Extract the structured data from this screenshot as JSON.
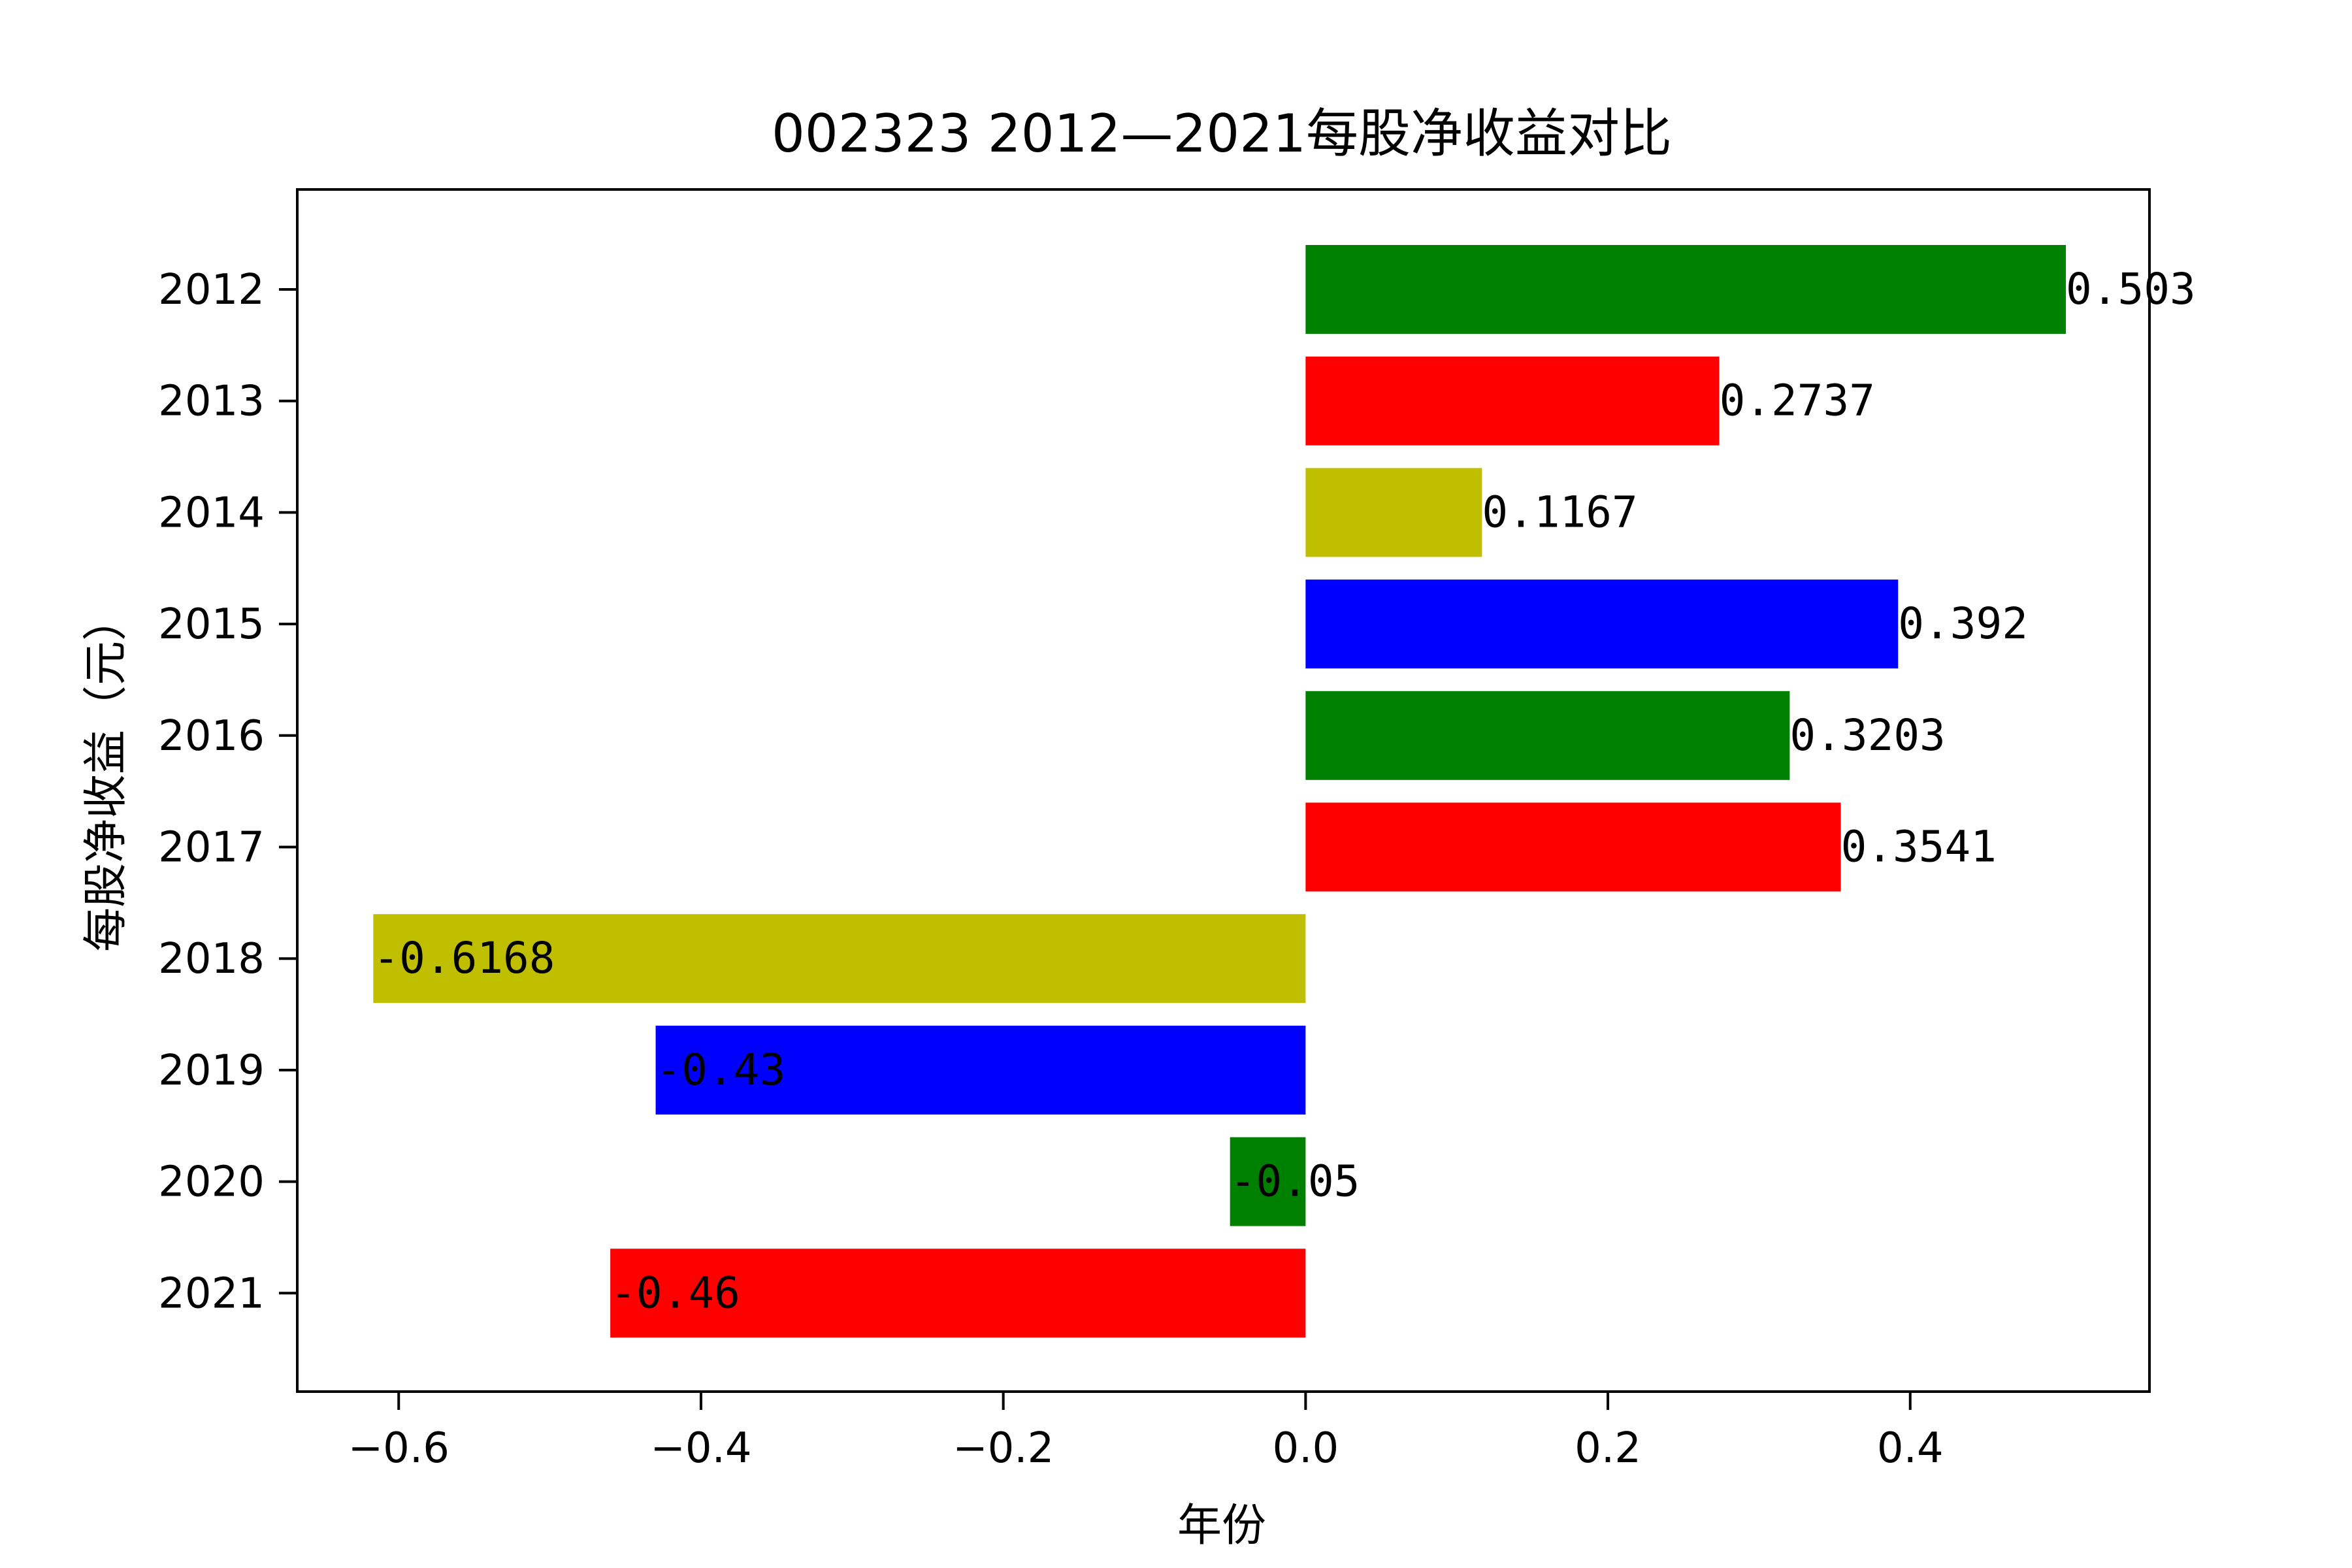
{
  "chart_data": {
    "type": "bar",
    "orientation": "horizontal",
    "title": "002323 2012—2021每股净收益对比",
    "xlabel": "年份",
    "ylabel": "每股净收益（元）",
    "categories": [
      "2012",
      "2013",
      "2014",
      "2015",
      "2016",
      "2017",
      "2018",
      "2019",
      "2020",
      "2021"
    ],
    "values": [
      0.503,
      0.2737,
      0.1167,
      0.392,
      0.3203,
      0.3541,
      -0.6168,
      -0.43,
      -0.05,
      -0.46
    ],
    "data_labels": [
      "0.503",
      "0.2737",
      "0.1167",
      "0.392",
      "0.3203",
      "0.3541",
      "-0.6168",
      "-0.43",
      "-0.05",
      "-0.46"
    ],
    "colors": [
      "#008000",
      "#ff0000",
      "#bfbf00",
      "#0000ff",
      "#008000",
      "#ff0000",
      "#bfbf00",
      "#0000ff",
      "#008000",
      "#ff0000"
    ],
    "xlim": [
      -0.6671,
      0.5583
    ],
    "xticks": [
      -0.6,
      -0.4,
      -0.2,
      0.0,
      0.2,
      0.4
    ],
    "xtick_labels": [
      "−0.6",
      "−0.4",
      "−0.2",
      "0.0",
      "0.2",
      "0.4"
    ],
    "grid": false,
    "legend": "none"
  }
}
